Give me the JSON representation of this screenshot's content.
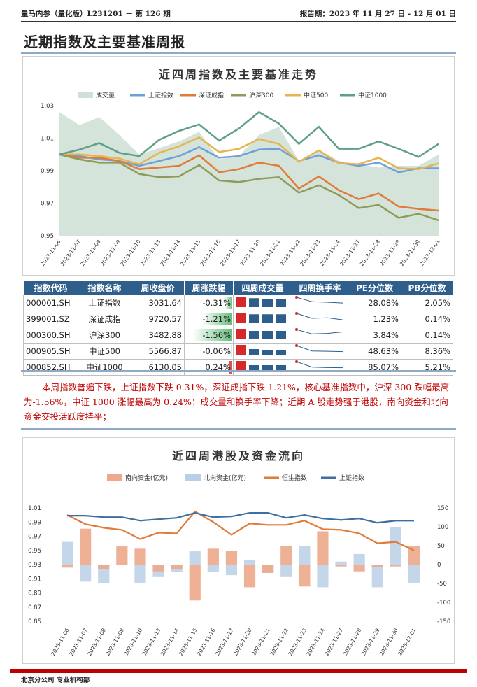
{
  "header": {
    "left": "量马内参（量化版）L231201 － 第 126 期",
    "right": "报告期：2023 年 11 月 27 日 - 12 月 01 日"
  },
  "page_title": "近期指数及主要基准周报",
  "chart1": {
    "title": "近四周指数及主要基准走势",
    "legend": [
      "成交量",
      "上证指数",
      "深证成指",
      "沪深300",
      "中证500",
      "中证1000"
    ],
    "colors": [
      "#cfe1d6",
      "#6f9fd8",
      "#e07b39",
      "#8f9b5a",
      "#e6b450",
      "#5f9e87"
    ],
    "y_ticks": [
      "1.03",
      "1.01",
      "0.99",
      "0.97",
      "0.95"
    ],
    "dates": [
      "2023-11-06",
      "2023-11-07",
      "2023-11-08",
      "2023-11-09",
      "2023-11-10",
      "2023-11-13",
      "2023-11-14",
      "2023-11-15",
      "2023-11-16",
      "2023-11-17",
      "2023-11-20",
      "2023-11-21",
      "2023-11-22",
      "2023-11-23",
      "2023-11-24",
      "2023-11-27",
      "2023-11-28",
      "2023-11-29",
      "2023-11-30",
      "2023-12-01"
    ]
  },
  "chart_data": [
    {
      "type": "line",
      "ylim": [
        0.95,
        1.03
      ],
      "x": [
        "2023-11-06",
        "2023-11-07",
        "2023-11-08",
        "2023-11-09",
        "2023-11-10",
        "2023-11-13",
        "2023-11-14",
        "2023-11-15",
        "2023-11-16",
        "2023-11-17",
        "2023-11-20",
        "2023-11-21",
        "2023-11-22",
        "2023-11-23",
        "2023-11-24",
        "2023-11-27",
        "2023-11-28",
        "2023-11-29",
        "2023-11-30",
        "2023-12-01"
      ],
      "series": [
        {
          "name": "成交量",
          "values": [
            1.026,
            1.018,
            1.023,
            1.012,
            1.0,
            1.004,
            1.008,
            1.014,
            0.997,
            0.999,
            1.012,
            1.017,
            0.996,
            1.003,
            0.996,
            0.994,
            0.992,
            0.993,
            0.993,
            1.0
          ]
        },
        {
          "name": "上证指数",
          "values": [
            1.0,
            0.999,
            0.997,
            0.996,
            0.993,
            0.996,
            0.999,
            1.0045,
            0.998,
            0.999,
            1.003,
            1.0035,
            0.996,
            0.9995,
            0.995,
            0.993,
            0.995,
            0.989,
            0.9915,
            0.9915
          ]
        },
        {
          "name": "深证成指",
          "values": [
            1.0,
            0.998,
            0.998,
            0.996,
            0.991,
            0.992,
            0.993,
            0.9995,
            0.989,
            0.991,
            0.995,
            0.993,
            0.979,
            0.9865,
            0.978,
            0.9725,
            0.976,
            0.968,
            0.9665,
            0.9655
          ]
        },
        {
          "name": "沪深300",
          "values": [
            1.0,
            0.997,
            0.995,
            0.995,
            0.988,
            0.986,
            0.9865,
            0.9935,
            0.984,
            0.983,
            0.985,
            0.986,
            0.9765,
            0.981,
            0.975,
            0.967,
            0.969,
            0.961,
            0.9635,
            0.9595
          ]
        },
        {
          "name": "中证500",
          "values": [
            1.0,
            1.0,
            0.999,
            0.9975,
            0.994,
            1.001,
            1.005,
            1.0105,
            1.0015,
            1.0035,
            1.0095,
            1.0065,
            0.9955,
            1.0025,
            0.9945,
            0.994,
            0.998,
            0.9915,
            0.991,
            0.9945
          ]
        },
        {
          "name": "中证1000",
          "values": [
            1.0,
            1.003,
            1.007,
            1.001,
            0.999,
            1.009,
            1.0145,
            1.0185,
            1.0085,
            1.016,
            1.026,
            1.019,
            1.0065,
            1.017,
            1.0035,
            1.0035,
            1.008,
            1.0035,
            0.9985,
            1.0065
          ]
        }
      ]
    },
    {
      "type": "bar",
      "ylim": [
        0.85,
        1.01
      ],
      "y2lim": [
        -150,
        150
      ],
      "x": [
        "2023-11-06",
        "2023-11-07",
        "2023-11-08",
        "2023-11-09",
        "2023-11-10",
        "2023-11-13",
        "2023-11-14",
        "2023-11-15",
        "2023-11-16",
        "2023-11-17",
        "2023-11-20",
        "2023-11-21",
        "2023-11-22",
        "2023-11-23",
        "2023-11-24",
        "2023-11-27",
        "2023-11-28",
        "2023-11-29",
        "2023-11-30",
        "2023-12-01"
      ],
      "series": [
        {
          "name": "南向资金(亿元)",
          "values": [
            -8,
            95,
            -12,
            48,
            42,
            -18,
            -12,
            -95,
            42,
            36,
            -60,
            -22,
            50,
            -58,
            88,
            -5,
            -18,
            -7,
            -5,
            50
          ]
        },
        {
          "name": "北向资金(亿元)",
          "values": [
            60,
            -45,
            -50,
            0,
            -48,
            -33,
            -20,
            35,
            -20,
            -28,
            12,
            -22,
            -33,
            50,
            -60,
            8,
            28,
            -60,
            100,
            -48
          ]
        },
        {
          "name": "恒生指数",
          "values": [
            1.0,
            0.987,
            0.982,
            0.979,
            0.966,
            0.975,
            0.974,
            1.005,
            0.99,
            0.972,
            0.988,
            0.986,
            0.986,
            0.992,
            0.98,
            0.979,
            0.974,
            0.96,
            0.962,
            0.95
          ]
        },
        {
          "name": "上证指数",
          "values": [
            0.999,
            0.999,
            0.997,
            0.997,
            0.992,
            0.994,
            0.996,
            1.003,
            0.997,
            0.998,
            1.003,
            1.003,
            0.996,
            1.0,
            0.995,
            0.993,
            0.995,
            0.989,
            0.992,
            0.992
          ]
        }
      ]
    }
  ],
  "table": {
    "headers": [
      "指数代码",
      "指数名称",
      "周收盘价",
      "周涨跌幅",
      "四周成交量",
      "四周换手率",
      "PE分位数",
      "PB分位数"
    ],
    "rows": [
      {
        "code": "000001.SH",
        "name": "上证指数",
        "close": "3031.64",
        "change": "-0.31%",
        "change_val": -0.31,
        "pe": "28.08%",
        "pb": "2.05%",
        "vol": [
          1.0,
          0.85,
          0.8,
          0.8
        ],
        "tr": [
          1.0,
          0.55,
          0.5,
          0.42
        ]
      },
      {
        "code": "399001.SZ",
        "name": "深证成指",
        "close": "9720.57",
        "change": "-1.21%",
        "change_val": -1.21,
        "pe": "1.23%",
        "pb": "0.14%",
        "vol": [
          1.0,
          0.85,
          0.85,
          0.85
        ],
        "tr": [
          1.0,
          0.5,
          0.55,
          0.35
        ]
      },
      {
        "code": "000300.SH",
        "name": "沪深300",
        "close": "3482.88",
        "change": "-1.56%",
        "change_val": -1.56,
        "pe": "3.84%",
        "pb": "0.14%",
        "vol": [
          1.0,
          0.8,
          0.8,
          0.8
        ],
        "tr": [
          1.0,
          0.55,
          0.6,
          0.75
        ]
      },
      {
        "code": "000905.SH",
        "name": "中证500",
        "close": "5566.87",
        "change": "-0.06%",
        "change_val": -0.06,
        "pe": "48.63%",
        "pb": "8.36%",
        "vol": [
          1.0,
          0.6,
          0.5,
          0.5
        ],
        "tr": [
          1.0,
          0.45,
          0.42,
          0.38
        ]
      },
      {
        "code": "000852.SH",
        "name": "中证1000",
        "close": "6130.05",
        "change": "0.24%",
        "change_val": 0.24,
        "pe": "85.07%",
        "pb": "5.21%",
        "vol": [
          1.0,
          0.6,
          0.6,
          0.6
        ],
        "tr": [
          1.0,
          0.45,
          0.4,
          0.38
        ]
      }
    ]
  },
  "summary": "本周指数普遍下跌，上证指数下跌-0.31%，深证成指下跌-1.21%，核心基准指数中，沪深 300 跌幅最高为-1.56%，中证 1000 涨幅最高为 0.24%；成交量和换手率下降；近期 A 股走势强于港股，南向资金和北向资金交投活跃度持平；",
  "chart2": {
    "title": "近四周港股及资金流向",
    "legend": [
      "南向资金(亿元)",
      "北向资金(亿元)",
      "恒生指数",
      "上证指数"
    ],
    "colors": [
      "#eda98b",
      "#b9cfe6",
      "#e07b39",
      "#3d6fa3"
    ],
    "y_ticks": [
      "1.01",
      "0.99",
      "0.97",
      "0.95",
      "0.93",
      "0.91",
      "0.89",
      "0.87",
      "0.85"
    ],
    "y2_ticks": [
      "150",
      "100",
      "50",
      "0",
      "-50",
      "-100",
      "-150"
    ]
  },
  "footer": "北京分公司 专业机构部"
}
